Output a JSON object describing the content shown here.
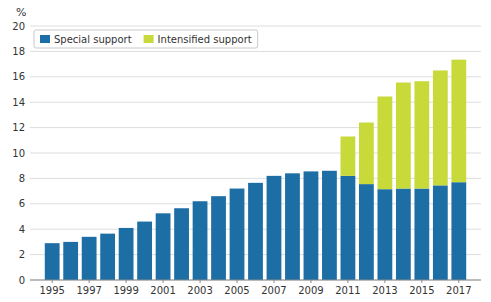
{
  "chart_data": {
    "type": "bar",
    "stacked": true,
    "x": [
      1995,
      1996,
      1997,
      1998,
      1999,
      2000,
      2001,
      2002,
      2003,
      2004,
      2005,
      2006,
      2007,
      2008,
      2009,
      2010,
      2011,
      2012,
      2013,
      2014,
      2015,
      2016,
      2017
    ],
    "xlim": [
      1993.8,
      2018.2
    ],
    "xticks": [
      1995,
      1997,
      1999,
      2001,
      2003,
      2005,
      2007,
      2009,
      2011,
      2013,
      2015,
      2017
    ],
    "ylim": [
      0,
      20
    ],
    "yticks": [
      0,
      2,
      4,
      6,
      8,
      10,
      12,
      14,
      16,
      18,
      20
    ],
    "ylabel": "%",
    "grid": true,
    "legend": "top-left",
    "series": [
      {
        "name": "Special support",
        "color": "#1c6ea4",
        "values": [
          2.9,
          3.0,
          3.4,
          3.65,
          4.1,
          4.6,
          5.25,
          5.65,
          6.2,
          6.6,
          7.2,
          7.65,
          8.2,
          8.4,
          8.55,
          8.6,
          8.2,
          7.55,
          7.15,
          7.2,
          7.2,
          7.45,
          7.7
        ]
      },
      {
        "name": "Intensified support",
        "color": "#c8d93a",
        "values": [
          0,
          0,
          0,
          0,
          0,
          0,
          0,
          0,
          0,
          0,
          0,
          0,
          0,
          0,
          0,
          0,
          3.1,
          4.85,
          7.3,
          8.35,
          8.45,
          9.05,
          9.65
        ]
      }
    ]
  }
}
